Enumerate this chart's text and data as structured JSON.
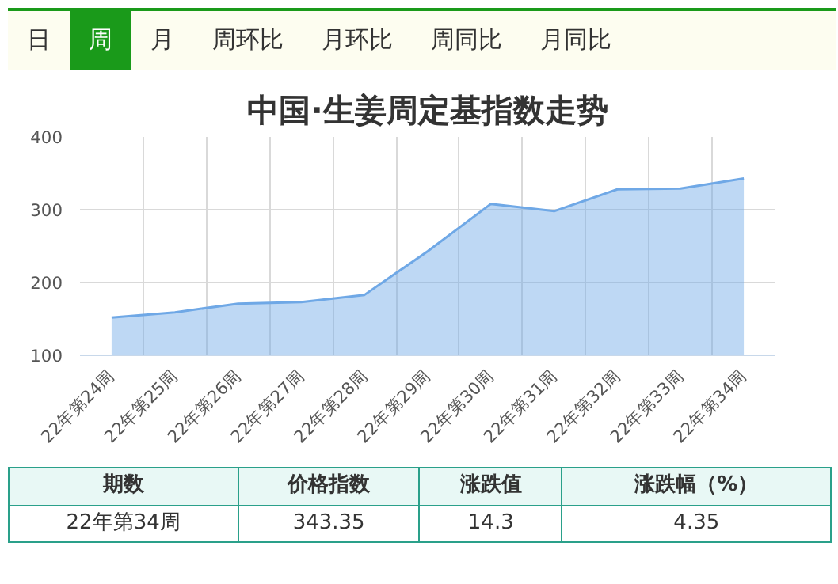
{
  "chart_data": {
    "type": "area",
    "title": "中国·生姜周定基指数走势",
    "categories": [
      "22年第24周",
      "22年第25周",
      "22年第26周",
      "22年第27周",
      "22年第28周",
      "22年第29周",
      "22年第30周",
      "22年第31周",
      "22年第32周",
      "22年第33周",
      "22年第34周"
    ],
    "series": [
      {
        "color": "#6fa8e6",
        "values": [
          152,
          159,
          171,
          173,
          183,
          243,
          308,
          298,
          328,
          329,
          343
        ]
      }
    ],
    "ylim": [
      100,
      400
    ],
    "yticks": [
      100,
      200,
      300,
      400
    ],
    "grid": true,
    "annotations": [
      "日",
      "周",
      "月",
      "周环比",
      "月环比",
      "周同比",
      "月同比",
      "期数",
      "价格指数",
      "涨跌值",
      "涨跌幅（%）",
      "22年第34周",
      "343.35",
      "14.3",
      "4.35"
    ]
  }
}
